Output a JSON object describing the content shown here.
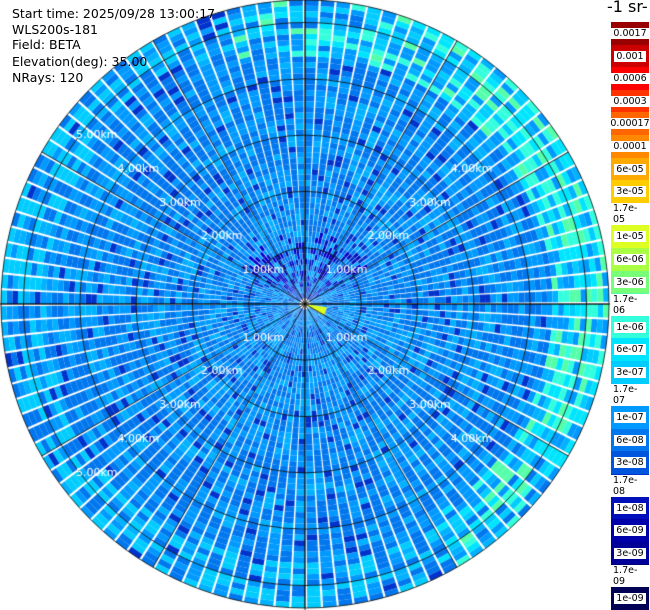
{
  "header": {
    "start_time": "Start time: 2025/09/28 13:00:17",
    "instrument": "WLS200s-181",
    "field": "Field: BETA",
    "elevation": "Elevation(deg): 35.00",
    "nrays": "NRays: 120"
  },
  "colorbar": {
    "title": "-1 sr-",
    "labels": [
      "0.0017",
      "0.001",
      "0.0006",
      "0.0003",
      "0.00017",
      "0.0001",
      "6e-05",
      "3e-05",
      "1.7e-05",
      "1e-05",
      "6e-06",
      "3e-06",
      "1.7e-06",
      "1e-06",
      "6e-07",
      "3e-07",
      "1.7e-07",
      "1e-07",
      "6e-08",
      "3e-08",
      "1.7e-08",
      "1e-08",
      "6e-09",
      "3e-09",
      "1.7e-09",
      "1e-09"
    ],
    "colors": [
      "#990000",
      "#cc0000",
      "#ff0000",
      "#ff3300",
      "#ff6600",
      "#ff8800",
      "#ffaa00",
      "#ffcc00",
      "#ffee00",
      "#ddff22",
      "#aaff44",
      "#77ff77",
      "#55ffaa",
      "#33ffdd",
      "#00e5ff",
      "#00ccff",
      "#00b2ff",
      "#0099ff",
      "#0077ee",
      "#0055dd",
      "#0033cc",
      "#0011bb",
      "#0000aa",
      "#000099",
      "#000077",
      "#000055"
    ]
  },
  "chart_data": {
    "type": "heatmap",
    "projection": "polar (PPI scan)",
    "field": "BETA",
    "elevation_deg": 35.0,
    "nrays": 120,
    "range_rings_km": [
      1,
      2,
      3,
      4,
      5
    ],
    "range_labels": [
      "1.00km",
      "2.00km",
      "3.00km",
      "4.00km",
      "5.00km"
    ],
    "max_range_km": 5.4,
    "color_scale": "log",
    "value_range": [
      1e-09,
      0.0017
    ],
    "typical_value": "3e-08 to 1e-07",
    "notes": "Strongest returns (1e-06 to 3e-06) near outer edge to the east and northeast; weaker returns (1e-08) near center to the north."
  }
}
